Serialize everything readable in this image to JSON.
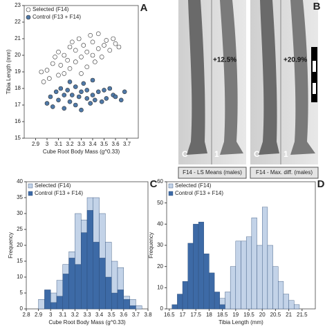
{
  "chart_data": [
    {
      "type": "scatter",
      "panel": "A",
      "xlabel": "Cube Root Body Mass (g^0.33)",
      "ylabel": "Tibia Length (mm)",
      "xlim": [
        2.8,
        3.8
      ],
      "xticks": [
        2.9,
        3,
        3.1,
        3.2,
        3.3,
        3.4,
        3.5,
        3.6,
        3.7
      ],
      "ylim": [
        15,
        23
      ],
      "yticks": [
        15,
        16,
        17,
        18,
        19,
        20,
        21,
        22,
        23
      ],
      "legend": "upper left",
      "series": [
        {
          "name": "Selected (F14)",
          "color": "#ffffff",
          "x": [
            2.95,
            2.97,
            3.0,
            3.02,
            3.05,
            3.07,
            3.1,
            3.1,
            3.12,
            3.15,
            3.15,
            3.18,
            3.2,
            3.2,
            3.22,
            3.25,
            3.25,
            3.28,
            3.3,
            3.3,
            3.32,
            3.35,
            3.35,
            3.38,
            3.4,
            3.4,
            3.42,
            3.45,
            3.45,
            3.48,
            3.5,
            3.52,
            3.55,
            3.58,
            3.6,
            3.63
          ],
          "values": [
            19.0,
            18.4,
            19.1,
            18.6,
            19.5,
            19.9,
            18.8,
            20.2,
            19.4,
            20.0,
            18.9,
            19.7,
            20.5,
            19.2,
            20.8,
            19.6,
            20.3,
            21.0,
            19.9,
            18.9,
            20.6,
            20.2,
            19.3,
            21.2,
            20.0,
            20.8,
            19.6,
            20.4,
            21.3,
            19.9,
            20.6,
            20.9,
            20.3,
            21.0,
            20.7,
            20.5
          ]
        },
        {
          "name": "Control (F13 + F14)",
          "color": "#4f79a8",
          "x": [
            3.0,
            3.03,
            3.05,
            3.08,
            3.1,
            3.12,
            3.15,
            3.15,
            3.18,
            3.2,
            3.2,
            3.22,
            3.25,
            3.25,
            3.28,
            3.3,
            3.3,
            3.32,
            3.35,
            3.35,
            3.38,
            3.4,
            3.4,
            3.42,
            3.45,
            3.48,
            3.5,
            3.52,
            3.55,
            3.58,
            3.6,
            3.65,
            3.68
          ],
          "values": [
            17.1,
            17.5,
            16.9,
            17.8,
            17.3,
            18.0,
            17.6,
            16.8,
            17.9,
            17.2,
            18.4,
            17.6,
            17.0,
            18.1,
            17.5,
            17.8,
            16.7,
            18.3,
            17.4,
            17.9,
            17.1,
            17.6,
            18.5,
            17.3,
            17.8,
            17.2,
            17.9,
            17.4,
            18.0,
            17.6,
            17.5,
            17.3,
            17.8
          ]
        }
      ]
    },
    {
      "type": "histogram",
      "panel": "C",
      "xlabel": "Cube Root Body Mass (g^0.33)",
      "ylabel": "Frequency",
      "xlim": [
        2.8,
        3.8
      ],
      "xticks": [
        2.8,
        2.9,
        3,
        3.1,
        3.2,
        3.3,
        3.4,
        3.5,
        3.6,
        3.7,
        3.8
      ],
      "ylim": [
        0,
        40
      ],
      "yticks": [
        0,
        5,
        10,
        15,
        20,
        25,
        30,
        35,
        40
      ],
      "legend": "upper left",
      "bins": [
        2.9,
        2.95,
        3.0,
        3.05,
        3.1,
        3.15,
        3.2,
        3.25,
        3.3,
        3.35,
        3.4,
        3.45,
        3.5,
        3.55,
        3.6,
        3.65,
        3.7,
        3.75
      ],
      "series": [
        {
          "name": "Selected (F14)",
          "color": "#c3d3e8",
          "values": [
            3,
            0,
            5,
            9,
            14,
            18,
            30,
            28,
            35,
            35,
            30,
            21,
            15,
            13,
            4,
            3,
            1
          ]
        },
        {
          "name": "Control (F13 + F14)",
          "color": "#3d6aa6",
          "values": [
            0,
            6,
            2,
            4,
            11,
            16,
            14,
            24,
            31,
            21,
            16,
            10,
            5,
            6,
            3,
            1,
            0
          ]
        }
      ]
    },
    {
      "type": "histogram",
      "panel": "D",
      "xlabel": "Tibia Length (mm)",
      "ylabel": "Frequency",
      "xlim": [
        16.4,
        22
      ],
      "xticks": [
        16.5,
        17,
        17.5,
        18,
        18.5,
        19,
        19.5,
        20,
        20.5,
        21,
        21.5
      ],
      "ylim": [
        0,
        60
      ],
      "yticks": [
        0,
        10,
        20,
        30,
        40,
        50,
        60
      ],
      "legend": "upper left",
      "bins": [
        16.6,
        16.8,
        17.0,
        17.2,
        17.4,
        17.6,
        17.8,
        18.0,
        18.2,
        18.4,
        18.6,
        18.8,
        19.0,
        19.2,
        19.4,
        19.6,
        19.8,
        20.0,
        20.2,
        20.4,
        20.6,
        20.8,
        21.0,
        21.2,
        21.4
      ],
      "series": [
        {
          "name": "Selected (F14)",
          "color": "#c3d3e8",
          "values": [
            0,
            0,
            0,
            0,
            0,
            0,
            0,
            0,
            0,
            5,
            8,
            20,
            32,
            32,
            34,
            43,
            30,
            48,
            30,
            20,
            13,
            7,
            4,
            2
          ]
        },
        {
          "name": "Control (F13 + F14)",
          "color": "#3d6aa6",
          "values": [
            2,
            7,
            13,
            31,
            40,
            41,
            26,
            17,
            8,
            2,
            0,
            0,
            0,
            0,
            0,
            0,
            0,
            0,
            0,
            0,
            0,
            0,
            0,
            0
          ]
        }
      ]
    }
  ],
  "panel_b": {
    "panel": "B",
    "left_percent": "+12.5%",
    "right_percent": "+20.9%",
    "left_labels": [
      "C",
      "1"
    ],
    "right_labels": [
      "C",
      "1"
    ],
    "left_caption": "F14 - LS Means (males)",
    "right_caption": "F14 - Max. diff. (males)"
  }
}
